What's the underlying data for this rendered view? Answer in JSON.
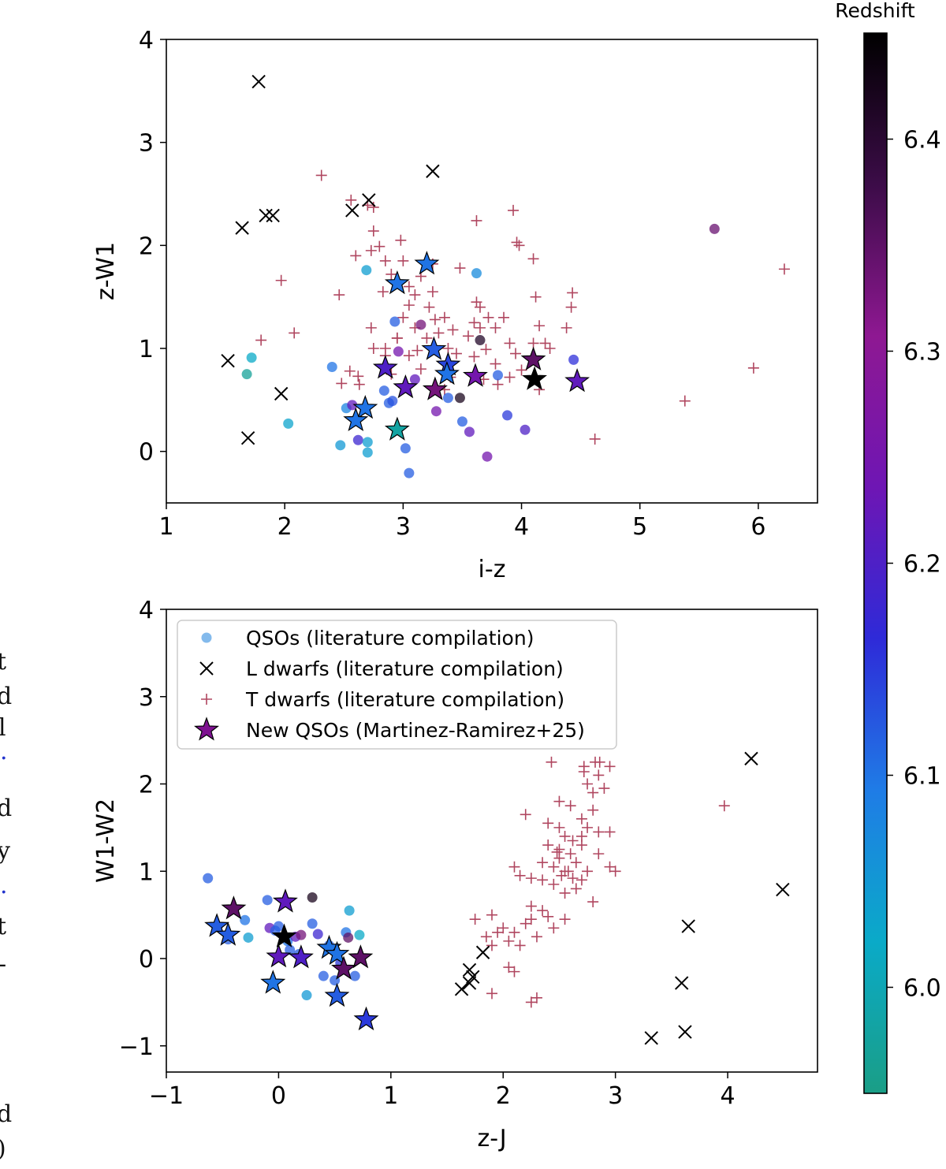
{
  "edge_text": [
    "t",
    "d",
    "l",
    ".",
    "d",
    "y",
    ".",
    "t",
    "-",
    "d",
    ")"
  ],
  "colorbar": {
    "label": "Redshift",
    "min": 5.95,
    "max": 6.45,
    "ticks": [
      6.0,
      6.1,
      6.2,
      6.3,
      6.4
    ],
    "tick_labels": [
      "6.0",
      "6.1",
      "6.2",
      "6.3",
      "6.4"
    ],
    "colors": [
      "#1a9e86",
      "#0aaac8",
      "#1f7ce6",
      "#2e2ad8",
      "#6e16b4",
      "#8e1892",
      "#3c0c48",
      "#000000"
    ]
  },
  "legend": {
    "entries": [
      {
        "label": "QSOs (literature compilation)",
        "marker": "circle",
        "color": "#5aa3e6"
      },
      {
        "label": "L dwarfs (literature compilation)",
        "marker": "x",
        "color": "#000000"
      },
      {
        "label": "T dwarfs (literature compilation)",
        "marker": "plus",
        "color": "#b04760"
      },
      {
        "label": "New QSOs (Martinez-Ramirez+25)",
        "marker": "star",
        "color": "#7e1290"
      }
    ]
  },
  "chart_data": [
    {
      "type": "scatter",
      "xlabel": "i-z",
      "ylabel": "z-W1",
      "xlim": [
        1,
        6.5
      ],
      "ylim": [
        -0.5,
        4
      ],
      "xticks": [
        1,
        2,
        3,
        4,
        5,
        6
      ],
      "xtick_labels": [
        "1",
        "2",
        "3",
        "4",
        "5",
        "6"
      ],
      "yticks": [
        0,
        1,
        2,
        3,
        4
      ],
      "ytick_labels": [
        "0",
        "1",
        "2",
        "3",
        "4"
      ],
      "qsos": [
        [
          1.72,
          0.91,
          6.02
        ],
        [
          1.68,
          0.75,
          5.97
        ],
        [
          2.03,
          0.27,
          6.03
        ],
        [
          2.47,
          0.06,
          6.05
        ],
        [
          2.52,
          0.42,
          6.08
        ],
        [
          2.57,
          0.45,
          6.22
        ],
        [
          2.4,
          0.82,
          6.1
        ],
        [
          2.62,
          0.11,
          6.18
        ],
        [
          2.69,
          1.76,
          6.04
        ],
        [
          2.7,
          0.09,
          6.04
        ],
        [
          2.7,
          -0.01,
          6.04
        ],
        [
          2.84,
          0.59,
          6.12
        ],
        [
          2.88,
          0.47,
          6.12
        ],
        [
          2.91,
          0.49,
          6.13
        ],
        [
          2.93,
          1.26,
          6.12
        ],
        [
          2.96,
          0.97,
          6.25
        ],
        [
          3.02,
          0.03,
          6.12
        ],
        [
          3.05,
          -0.21,
          6.12
        ],
        [
          3.1,
          0.7,
          6.22
        ],
        [
          3.15,
          1.23,
          6.33
        ],
        [
          3.28,
          0.39,
          6.25
        ],
        [
          3.38,
          0.52,
          6.12
        ],
        [
          3.48,
          0.52,
          6.42
        ],
        [
          3.5,
          0.29,
          6.12
        ],
        [
          3.56,
          0.19,
          6.22
        ],
        [
          3.62,
          1.73,
          6.07
        ],
        [
          3.65,
          1.08,
          6.41
        ],
        [
          3.71,
          -0.05,
          6.25
        ],
        [
          3.8,
          0.74,
          6.12
        ],
        [
          3.88,
          0.35,
          6.15
        ],
        [
          4.03,
          0.21,
          6.2
        ],
        [
          4.44,
          0.89,
          6.16
        ],
        [
          5.63,
          2.16,
          6.34
        ]
      ],
      "l_dwarfs": [
        [
          1.78,
          3.59
        ],
        [
          1.64,
          2.17
        ],
        [
          1.84,
          2.29
        ],
        [
          1.9,
          2.29
        ],
        [
          1.52,
          0.88
        ],
        [
          1.97,
          0.56
        ],
        [
          1.69,
          0.13
        ],
        [
          2.57,
          2.34
        ],
        [
          2.71,
          2.44
        ],
        [
          3.25,
          2.72
        ]
      ],
      "t_dwarfs": [
        [
          2.31,
          2.68
        ],
        [
          2.56,
          2.44
        ],
        [
          2.7,
          2.39
        ],
        [
          2.75,
          2.37
        ],
        [
          2.75,
          2.14
        ],
        [
          2.8,
          1.99
        ],
        [
          2.73,
          1.95
        ],
        [
          2.98,
          2.05
        ],
        [
          3.62,
          2.24
        ],
        [
          3.93,
          2.34
        ],
        [
          3.96,
          2.03
        ],
        [
          3.98,
          2.0
        ],
        [
          4.1,
          1.87
        ],
        [
          3.48,
          1.78
        ],
        [
          1.97,
          1.66
        ],
        [
          2.46,
          1.52
        ],
        [
          1.8,
          1.08
        ],
        [
          2.08,
          1.15
        ],
        [
          2.83,
          1.55
        ],
        [
          3.1,
          1.52
        ],
        [
          3.25,
          1.55
        ],
        [
          3.22,
          1.4
        ],
        [
          3.27,
          1.28
        ],
        [
          3.35,
          1.3
        ],
        [
          3.42,
          1.18
        ],
        [
          3.55,
          1.12
        ],
        [
          3.6,
          1.25
        ],
        [
          3.65,
          1.2
        ],
        [
          3.72,
          1.3
        ],
        [
          3.62,
          1.45
        ],
        [
          3.65,
          1.4
        ],
        [
          3.78,
          1.2
        ],
        [
          3.85,
          1.3
        ],
        [
          3.9,
          1.05
        ],
        [
          3.95,
          0.95
        ],
        [
          4.1,
          1.05
        ],
        [
          4.12,
          1.5
        ],
        [
          4.15,
          1.22
        ],
        [
          4.24,
          1.0
        ],
        [
          4.2,
          1.05
        ],
        [
          4.38,
          1.2
        ],
        [
          4.42,
          1.4
        ],
        [
          4.43,
          1.54
        ],
        [
          2.62,
          0.73
        ],
        [
          2.73,
          1.2
        ],
        [
          2.75,
          1.0
        ],
        [
          2.85,
          1.0
        ],
        [
          2.95,
          1.1
        ],
        [
          3.05,
          0.93
        ],
        [
          3.12,
          0.98
        ],
        [
          3.2,
          1.1
        ],
        [
          3.3,
          1.15
        ],
        [
          3.38,
          1.0
        ],
        [
          3.45,
          0.95
        ],
        [
          3.6,
          0.92
        ],
        [
          3.7,
          0.99
        ],
        [
          3.78,
          0.85
        ],
        [
          2.55,
          0.78
        ],
        [
          2.48,
          0.66
        ],
        [
          2.63,
          0.65
        ],
        [
          2.85,
          0.93
        ],
        [
          2.9,
          0.75
        ],
        [
          3.15,
          0.8
        ],
        [
          3.35,
          0.6
        ],
        [
          3.4,
          0.72
        ],
        [
          3.68,
          0.7
        ],
        [
          3.8,
          0.65
        ],
        [
          3.9,
          0.72
        ],
        [
          4.0,
          0.79
        ],
        [
          4.15,
          0.6
        ],
        [
          4.62,
          0.12
        ],
        [
          5.38,
          0.49
        ],
        [
          5.96,
          0.81
        ],
        [
          6.22,
          1.77
        ],
        [
          2.6,
          1.9
        ],
        [
          2.85,
          1.85
        ],
        [
          3.0,
          1.85
        ],
        [
          2.9,
          1.72
        ],
        [
          3.05,
          1.6
        ],
        [
          3.15,
          1.7
        ],
        [
          3.25,
          1.82
        ],
        [
          3.0,
          1.3
        ],
        [
          3.05,
          1.42
        ],
        [
          3.1,
          1.2
        ],
        [
          2.95,
          1.1
        ]
      ],
      "new_qsos": [
        [
          3.2,
          1.82,
          6.1
        ],
        [
          2.95,
          1.63,
          6.1
        ],
        [
          3.26,
          0.99,
          6.12
        ],
        [
          3.38,
          0.84,
          6.14
        ],
        [
          3.37,
          0.75,
          6.1
        ],
        [
          2.85,
          0.81,
          6.2
        ],
        [
          3.02,
          0.62,
          6.22
        ],
        [
          3.27,
          0.6,
          6.33
        ],
        [
          3.61,
          0.73,
          6.25
        ],
        [
          4.1,
          0.89,
          6.35
        ],
        [
          4.11,
          0.7,
          6.45
        ],
        [
          4.47,
          0.68,
          6.22
        ],
        [
          2.68,
          0.42,
          6.1
        ],
        [
          2.6,
          0.3,
          6.1
        ],
        [
          2.95,
          0.21,
          5.98
        ]
      ]
    },
    {
      "type": "scatter",
      "xlabel": "z-J",
      "ylabel": "W1-W2",
      "xlim": [
        -1,
        4.8
      ],
      "ylim": [
        -1.3,
        4
      ],
      "xticks": [
        -1,
        0,
        1,
        2,
        3,
        4
      ],
      "xtick_labels": [
        "−1",
        "0",
        "1",
        "2",
        "3",
        "4"
      ],
      "yticks": [
        -1,
        0,
        1,
        2,
        3,
        4
      ],
      "ytick_labels": [
        "−1",
        "0",
        "1",
        "2",
        "3",
        "4"
      ],
      "qsos": [
        [
          -0.63,
          0.92,
          6.12
        ],
        [
          -0.45,
          0.22,
          6.12
        ],
        [
          -0.3,
          0.44,
          6.1
        ],
        [
          -0.27,
          0.24,
          6.04
        ],
        [
          -0.1,
          0.67,
          6.12
        ],
        [
          -0.08,
          0.35,
          6.22
        ],
        [
          -0.03,
          0.32,
          6.12
        ],
        [
          0.0,
          0.37,
          6.12
        ],
        [
          0.08,
          0.2,
          6.1
        ],
        [
          0.15,
          0.25,
          6.22
        ],
        [
          0.18,
          0.05,
          6.12
        ],
        [
          0.2,
          0.27,
          6.33
        ],
        [
          0.25,
          -0.42,
          6.05
        ],
        [
          0.3,
          0.4,
          6.12
        ],
        [
          0.35,
          0.28,
          6.18
        ],
        [
          0.3,
          0.7,
          6.42
        ],
        [
          0.4,
          -0.2,
          6.12
        ],
        [
          0.45,
          0.15,
          6.12
        ],
        [
          0.5,
          -0.25,
          6.12
        ],
        [
          0.6,
          0.3,
          6.1
        ],
        [
          0.62,
          0.24,
          6.35
        ],
        [
          0.63,
          0.55,
          6.04
        ],
        [
          0.72,
          0.27,
          6.02
        ],
        [
          0.68,
          -0.2,
          6.12
        ],
        [
          0.55,
          -0.05,
          6.15
        ],
        [
          0.1,
          0.1,
          6.12
        ]
      ],
      "l_dwarfs": [
        [
          4.21,
          2.29
        ],
        [
          4.49,
          0.79
        ],
        [
          3.65,
          0.37
        ],
        [
          3.59,
          -0.28
        ],
        [
          3.62,
          -0.84
        ],
        [
          3.32,
          -0.91
        ],
        [
          1.82,
          0.07
        ],
        [
          1.7,
          -0.13
        ],
        [
          1.73,
          -0.21
        ],
        [
          1.7,
          -0.28
        ],
        [
          1.63,
          -0.35
        ]
      ],
      "t_dwarfs": [
        [
          2.43,
          2.25
        ],
        [
          2.72,
          2.14
        ],
        [
          2.72,
          2.2
        ],
        [
          2.82,
          2.25
        ],
        [
          2.86,
          2.25
        ],
        [
          2.95,
          2.2
        ],
        [
          3.97,
          1.75
        ],
        [
          2.85,
          2.1
        ],
        [
          2.75,
          2.0
        ],
        [
          2.8,
          1.9
        ],
        [
          2.9,
          1.95
        ],
        [
          2.5,
          1.8
        ],
        [
          2.6,
          1.75
        ],
        [
          2.7,
          1.6
        ],
        [
          2.8,
          1.7
        ],
        [
          2.2,
          1.65
        ],
        [
          2.4,
          1.55
        ],
        [
          2.5,
          1.5
        ],
        [
          2.55,
          1.4
        ],
        [
          2.62,
          1.35
        ],
        [
          2.7,
          1.4
        ],
        [
          2.75,
          1.5
        ],
        [
          2.85,
          1.45
        ],
        [
          2.95,
          1.45
        ],
        [
          2.4,
          1.3
        ],
        [
          2.5,
          1.25
        ],
        [
          2.6,
          1.2
        ],
        [
          2.7,
          1.3
        ],
        [
          2.35,
          1.1
        ],
        [
          2.45,
          1.05
        ],
        [
          2.55,
          1.0
        ],
        [
          2.65,
          1.1
        ],
        [
          2.75,
          1.0
        ],
        [
          2.85,
          1.2
        ],
        [
          2.95,
          1.05
        ],
        [
          3.0,
          1.0
        ],
        [
          2.1,
          1.05
        ],
        [
          2.15,
          0.95
        ],
        [
          2.25,
          0.92
        ],
        [
          2.35,
          0.9
        ],
        [
          2.45,
          0.85
        ],
        [
          2.55,
          0.75
        ],
        [
          2.65,
          0.8
        ],
        [
          2.7,
          0.9
        ],
        [
          2.8,
          0.65
        ],
        [
          2.25,
          0.6
        ],
        [
          2.35,
          0.55
        ],
        [
          2.4,
          0.48
        ],
        [
          2.25,
          0.45
        ],
        [
          2.2,
          0.4
        ],
        [
          2.1,
          0.3
        ],
        [
          2.0,
          0.35
        ],
        [
          1.95,
          0.3
        ],
        [
          2.05,
          0.2
        ],
        [
          1.9,
          0.15
        ],
        [
          1.85,
          0.25
        ],
        [
          1.75,
          0.45
        ],
        [
          1.9,
          0.5
        ],
        [
          2.15,
          0.15
        ],
        [
          2.3,
          0.25
        ],
        [
          2.45,
          0.35
        ],
        [
          2.55,
          0.45
        ],
        [
          2.3,
          -0.45
        ],
        [
          2.25,
          -0.5
        ],
        [
          2.05,
          -0.1
        ],
        [
          1.9,
          -0.4
        ],
        [
          2.1,
          -0.15
        ],
        [
          2.5,
          1.15
        ],
        [
          2.52,
          0.95
        ],
        [
          2.58,
          1.0
        ],
        [
          2.62,
          0.92
        ],
        [
          2.48,
          1.22
        ]
      ],
      "new_qsos": [
        [
          -0.4,
          0.57,
          6.35
        ],
        [
          -0.55,
          0.37,
          6.12
        ],
        [
          -0.45,
          0.27,
          6.12
        ],
        [
          0.06,
          0.65,
          6.22
        ],
        [
          0.05,
          0.25,
          6.45
        ],
        [
          0.0,
          0.02,
          6.22
        ],
        [
          0.2,
          0.01,
          6.2
        ],
        [
          0.45,
          0.12,
          6.1
        ],
        [
          0.52,
          0.05,
          6.1
        ],
        [
          0.73,
          0.01,
          6.35
        ],
        [
          0.58,
          -0.12,
          6.35
        ],
        [
          -0.05,
          -0.28,
          6.1
        ],
        [
          0.52,
          -0.43,
          6.12
        ],
        [
          0.78,
          -0.7,
          6.15
        ]
      ]
    }
  ]
}
